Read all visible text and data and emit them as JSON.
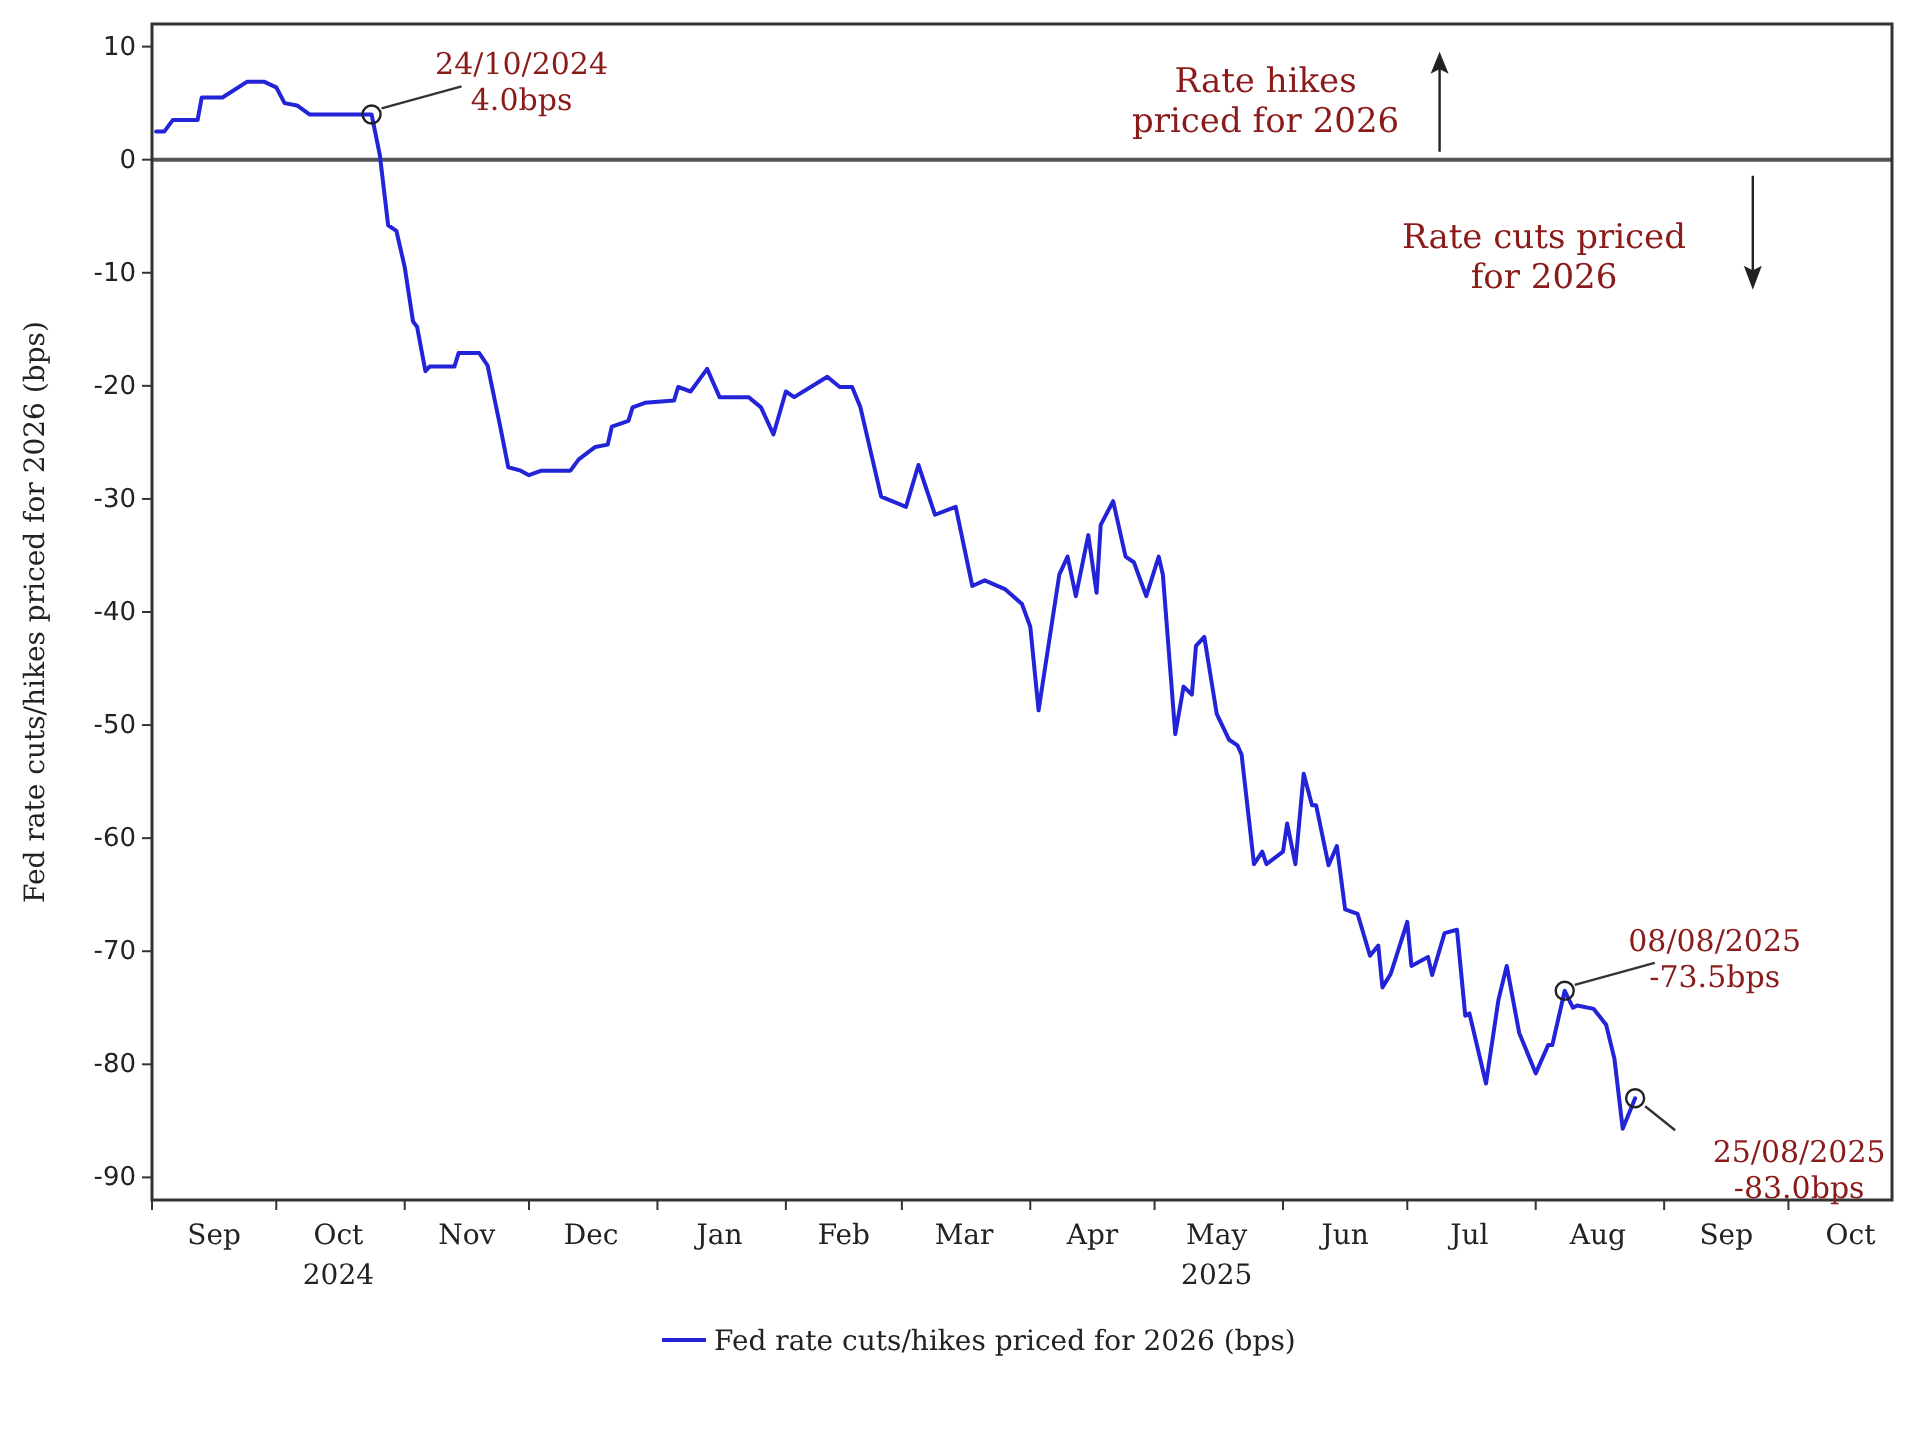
{
  "chart_data": {
    "type": "line",
    "ylabel": "Fed rate cuts/hikes priced for 2026 (bps)",
    "xlim": [
      "2024-09-01",
      "2025-10-26"
    ],
    "xticks": [
      {
        "value": "2024-09-01",
        "label": null
      },
      {
        "value": "2024-09-16",
        "label": "Sep"
      },
      {
        "value": "2024-10-01",
        "label": null
      },
      {
        "value": "2024-10-16",
        "label": "Oct\n2024"
      },
      {
        "value": "2024-11-01",
        "label": null
      },
      {
        "value": "2024-11-16",
        "label": "Nov"
      },
      {
        "value": "2024-12-01",
        "label": null
      },
      {
        "value": "2024-12-16",
        "label": "Dec"
      },
      {
        "value": "2025-01-01",
        "label": null
      },
      {
        "value": "2025-01-16",
        "label": "Jan"
      },
      {
        "value": "2025-02-01",
        "label": null
      },
      {
        "value": "2025-02-15",
        "label": "Feb"
      },
      {
        "value": "2025-03-01",
        "label": null
      },
      {
        "value": "2025-03-16",
        "label": "Mar"
      },
      {
        "value": "2025-04-01",
        "label": null
      },
      {
        "value": "2025-04-16",
        "label": "Apr"
      },
      {
        "value": "2025-05-01",
        "label": null
      },
      {
        "value": "2025-05-16",
        "label": "May\n2025"
      },
      {
        "value": "2025-06-01",
        "label": null
      },
      {
        "value": "2025-06-16",
        "label": "Jun"
      },
      {
        "value": "2025-07-01",
        "label": null
      },
      {
        "value": "2025-07-16",
        "label": "Jul"
      },
      {
        "value": "2025-08-01",
        "label": null
      },
      {
        "value": "2025-08-16",
        "label": "Aug"
      },
      {
        "value": "2025-09-01",
        "label": null
      },
      {
        "value": "2025-09-16",
        "label": "Sep"
      },
      {
        "value": "2025-10-01",
        "label": null
      },
      {
        "value": "2025-10-16",
        "label": "Oct"
      }
    ],
    "ylim": [
      -92,
      12
    ],
    "yticks": [
      10,
      0,
      -10,
      -20,
      -30,
      -40,
      -50,
      -60,
      -70,
      -80,
      -90
    ],
    "grid": false,
    "legend": "bottom",
    "line_style": "solid",
    "ref_lines": [
      {
        "axis": "y",
        "value": 0,
        "color": "#555555"
      }
    ],
    "x": [
      "2024-09-02",
      "2024-09-04",
      "2024-09-06",
      "2024-09-12",
      "2024-09-13",
      "2024-09-18",
      "2024-09-24",
      "2024-09-28",
      "2024-10-01",
      "2024-10-03",
      "2024-10-06",
      "2024-10-09",
      "2024-10-24",
      "2024-10-26",
      "2024-10-28",
      "2024-10-30",
      "2024-11-01",
      "2024-11-03",
      "2024-11-04",
      "2024-11-06",
      "2024-11-07",
      "2024-11-13",
      "2024-11-14",
      "2024-11-19",
      "2024-11-21",
      "2024-11-24",
      "2024-11-26",
      "2024-11-29",
      "2024-12-01",
      "2024-12-04",
      "2024-12-11",
      "2024-12-13",
      "2024-12-17",
      "2024-12-20",
      "2024-12-21",
      "2024-12-25",
      "2024-12-26",
      "2024-12-29",
      "2025-01-05",
      "2025-01-06",
      "2025-01-09",
      "2025-01-13",
      "2025-01-16",
      "2025-01-23",
      "2025-01-26",
      "2025-01-29",
      "2025-02-01",
      "2025-02-03",
      "2025-02-07",
      "2025-02-11",
      "2025-02-14",
      "2025-02-17",
      "2025-02-19",
      "2025-02-24",
      "2025-03-02",
      "2025-03-05",
      "2025-03-09",
      "2025-03-14",
      "2025-03-18",
      "2025-03-21",
      "2025-03-26",
      "2025-03-30",
      "2025-04-01",
      "2025-04-03",
      "2025-04-08",
      "2025-04-10",
      "2025-04-12",
      "2025-04-15",
      "2025-04-17",
      "2025-04-18",
      "2025-04-21",
      "2025-04-24",
      "2025-04-26",
      "2025-04-29",
      "2025-05-02",
      "2025-05-03",
      "2025-05-06",
      "2025-05-08",
      "2025-05-10",
      "2025-05-11",
      "2025-05-13",
      "2025-05-16",
      "2025-05-19",
      "2025-05-21",
      "2025-05-22",
      "2025-05-25",
      "2025-05-27",
      "2025-05-28",
      "2025-06-01",
      "2025-06-02",
      "2025-06-04",
      "2025-06-06",
      "2025-06-08",
      "2025-06-09",
      "2025-06-12",
      "2025-06-14",
      "2025-06-16",
      "2025-06-19",
      "2025-06-22",
      "2025-06-24",
      "2025-06-25",
      "2025-06-27",
      "2025-07-01",
      "2025-07-02",
      "2025-07-06",
      "2025-07-07",
      "2025-07-10",
      "2025-07-13",
      "2025-07-15",
      "2025-07-16",
      "2025-07-20",
      "2025-07-23",
      "2025-07-25",
      "2025-07-28",
      "2025-08-01",
      "2025-08-04",
      "2025-08-05",
      "2025-08-08",
      "2025-08-10",
      "2025-08-11",
      "2025-08-15",
      "2025-08-18",
      "2025-08-20",
      "2025-08-22",
      "2025-08-25"
    ],
    "series": [
      {
        "name": "Fed rate cuts/hikes priced for 2026 (bps)",
        "color": "#2323d8",
        "values": [
          2.5,
          2.5,
          3.5,
          3.5,
          5.5,
          5.5,
          6.9,
          6.9,
          6.4,
          5,
          4.8,
          4,
          4.0,
          0.4,
          -5.8,
          -6.3,
          -9.5,
          -14.3,
          -14.8,
          -18.7,
          -18.3,
          -18.3,
          -17.1,
          -17.1,
          -18.2,
          -23.5,
          -27.2,
          -27.5,
          -27.9,
          -27.5,
          -27.5,
          -26.5,
          -25.4,
          -25.2,
          -23.6,
          -23.1,
          -21.9,
          -21.5,
          -21.3,
          -20.1,
          -20.5,
          -18.5,
          -21,
          -21,
          -21.9,
          -24.3,
          -20.5,
          -21,
          -20.1,
          -19.2,
          -20.1,
          -20.1,
          -21.9,
          -29.8,
          -30.7,
          -27,
          -31.4,
          -30.7,
          -37.7,
          -37.2,
          -38,
          -39.3,
          -41.3,
          -48.7,
          -36.7,
          -35.1,
          -38.6,
          -33.2,
          -38.3,
          -32.3,
          -30.2,
          -35.1,
          -35.6,
          -38.6,
          -35.1,
          -36.7,
          -50.8,
          -46.6,
          -47.3,
          -43,
          -42.2,
          -49,
          -51.3,
          -51.8,
          -52.6,
          -62.3,
          -61.2,
          -62.3,
          -61.2,
          -58.7,
          -62.3,
          -54.3,
          -57.1,
          -57.1,
          -62.4,
          -60.7,
          -66.3,
          -66.7,
          -70.4,
          -69.5,
          -73.2,
          -72,
          -67.4,
          -71.3,
          -70.5,
          -72.1,
          -68.4,
          -68.1,
          -75.7,
          -75.5,
          -81.7,
          -74.3,
          -71.3,
          -77.2,
          -80.8,
          -78.3,
          -78.3,
          -73.5,
          -75,
          -74.8,
          -75.1,
          -76.5,
          -79.5,
          -85.7,
          -83.0
        ]
      }
    ],
    "annotations": [
      {
        "text": "24/10/2024\n4.0bps",
        "x": "2024-10-24",
        "y": 4.0
      },
      {
        "text": "08/08/2025\n-73.5bps",
        "x": "2025-08-08",
        "y": -73.5
      },
      {
        "text": "25/08/2025\n-83.0bps",
        "x": "2025-08-25",
        "y": -83.0
      },
      "Rate hikes\npriced for 2026",
      "Rate cuts priced\nfor 2026"
    ]
  }
}
